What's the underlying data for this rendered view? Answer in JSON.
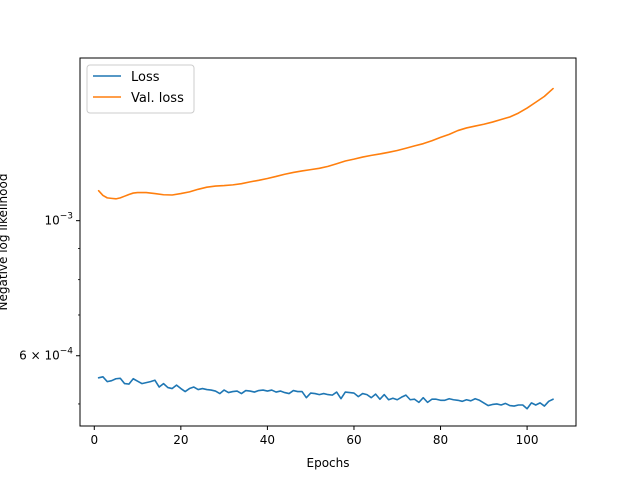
{
  "chart_data": {
    "type": "line",
    "title": "",
    "xlabel": "Epochs",
    "ylabel": "Negative log likelihood",
    "xlim": [
      -3.3,
      111.3
    ],
    "ylim": [
      0.00046,
      0.00185
    ],
    "yscale": "log",
    "grid": false,
    "legend_position": "upper-left",
    "x_ticks": [
      {
        "value": 0,
        "label": "0"
      },
      {
        "value": 20,
        "label": "20"
      },
      {
        "value": 40,
        "label": "40"
      },
      {
        "value": 60,
        "label": "60"
      },
      {
        "value": 80,
        "label": "80"
      },
      {
        "value": 100,
        "label": "100"
      }
    ],
    "y_major_ticks": [
      {
        "value": 0.001,
        "base": "10",
        "exp": "−3",
        "mantissa": ""
      },
      {
        "value": 0.0006,
        "base": "10",
        "exp": "−4",
        "mantissa": "6 × "
      }
    ],
    "y_minor_ticks": [
      0.0005,
      0.0007,
      0.0008,
      0.0009
    ],
    "series": [
      {
        "name": "Loss",
        "color": "#1f77b4",
        "x": [
          1,
          2,
          3,
          4,
          5,
          6,
          7,
          8,
          9,
          10,
          11,
          12,
          13,
          14,
          15,
          16,
          17,
          18,
          19,
          20,
          21,
          22,
          23,
          24,
          25,
          26,
          27,
          28,
          29,
          30,
          31,
          32,
          33,
          34,
          35,
          36,
          37,
          38,
          39,
          40,
          41,
          42,
          43,
          44,
          45,
          46,
          47,
          48,
          49,
          50,
          51,
          52,
          53,
          54,
          55,
          56,
          57,
          58,
          59,
          60,
          61,
          62,
          63,
          64,
          65,
          66,
          67,
          68,
          69,
          70,
          71,
          72,
          73,
          74,
          75,
          76,
          77,
          78,
          79,
          80,
          81,
          82,
          83,
          84,
          85,
          86,
          87,
          88,
          89,
          90,
          91,
          92,
          93,
          94,
          95,
          96,
          97,
          98,
          99,
          100,
          101,
          102,
          103,
          104,
          105,
          106
        ],
        "values": [
          0.000552,
          0.000554,
          0.000544,
          0.000546,
          0.00055,
          0.000551,
          0.00054,
          0.000539,
          0.00055,
          0.000545,
          0.00054,
          0.000542,
          0.000544,
          0.000547,
          0.000533,
          0.00054,
          0.000532,
          0.00053,
          0.000537,
          0.00053,
          0.000524,
          0.00053,
          0.000533,
          0.000528,
          0.00053,
          0.000528,
          0.000527,
          0.000525,
          0.00052,
          0.000527,
          0.000522,
          0.000524,
          0.000525,
          0.00052,
          0.000526,
          0.000525,
          0.000523,
          0.000526,
          0.000527,
          0.000525,
          0.000527,
          0.000523,
          0.000525,
          0.000522,
          0.00052,
          0.000526,
          0.000524,
          0.000524,
          0.000512,
          0.000521,
          0.00052,
          0.000518,
          0.00052,
          0.000518,
          0.000517,
          0.000523,
          0.00051,
          0.000523,
          0.000522,
          0.000521,
          0.000514,
          0.00052,
          0.000518,
          0.000512,
          0.000519,
          0.000509,
          0.000518,
          0.000508,
          0.000511,
          0.000508,
          0.000513,
          0.000517,
          0.000508,
          0.000509,
          0.000503,
          0.000512,
          0.000503,
          0.000509,
          0.000509,
          0.000507,
          0.000507,
          0.00051,
          0.000508,
          0.000507,
          0.000505,
          0.000508,
          0.000506,
          0.00051,
          0.000507,
          0.000502,
          0.000497,
          0.000499,
          0.0005,
          0.000498,
          0.000501,
          0.000497,
          0.000496,
          0.000498,
          0.000498,
          0.000491,
          0.000502,
          0.000498,
          0.000502,
          0.000496,
          0.000505,
          0.000509
        ]
      },
      {
        "name": "Val. loss",
        "color": "#ff7f0e",
        "x": [
          1,
          2,
          3,
          4,
          5,
          6,
          7,
          8,
          9,
          10,
          12,
          14,
          16,
          18,
          20,
          22,
          24,
          26,
          28,
          30,
          32,
          34,
          36,
          38,
          40,
          42,
          44,
          46,
          48,
          50,
          52,
          54,
          56,
          58,
          60,
          62,
          64,
          66,
          68,
          70,
          72,
          74,
          76,
          78,
          80,
          82,
          84,
          86,
          88,
          90,
          92,
          94,
          96,
          98,
          100,
          102,
          104,
          106
        ],
        "values": [
          0.00112,
          0.0011,
          0.00109,
          0.001088,
          0.001086,
          0.00109,
          0.001097,
          0.001104,
          0.00111,
          0.001112,
          0.001112,
          0.001108,
          0.001103,
          0.001102,
          0.001108,
          0.001115,
          0.001126,
          0.001135,
          0.00114,
          0.001142,
          0.001145,
          0.00115,
          0.001158,
          0.001165,
          0.001173,
          0.001182,
          0.001192,
          0.0012,
          0.001207,
          0.001213,
          0.001219,
          0.001228,
          0.00124,
          0.001253,
          0.001262,
          0.001272,
          0.00128,
          0.001287,
          0.001295,
          0.001304,
          0.001315,
          0.001327,
          0.001338,
          0.001353,
          0.00137,
          0.001386,
          0.001406,
          0.00142,
          0.00143,
          0.00144,
          0.001452,
          0.001466,
          0.00148,
          0.001502,
          0.001531,
          0.001565,
          0.0016,
          0.001648
        ]
      }
    ]
  }
}
